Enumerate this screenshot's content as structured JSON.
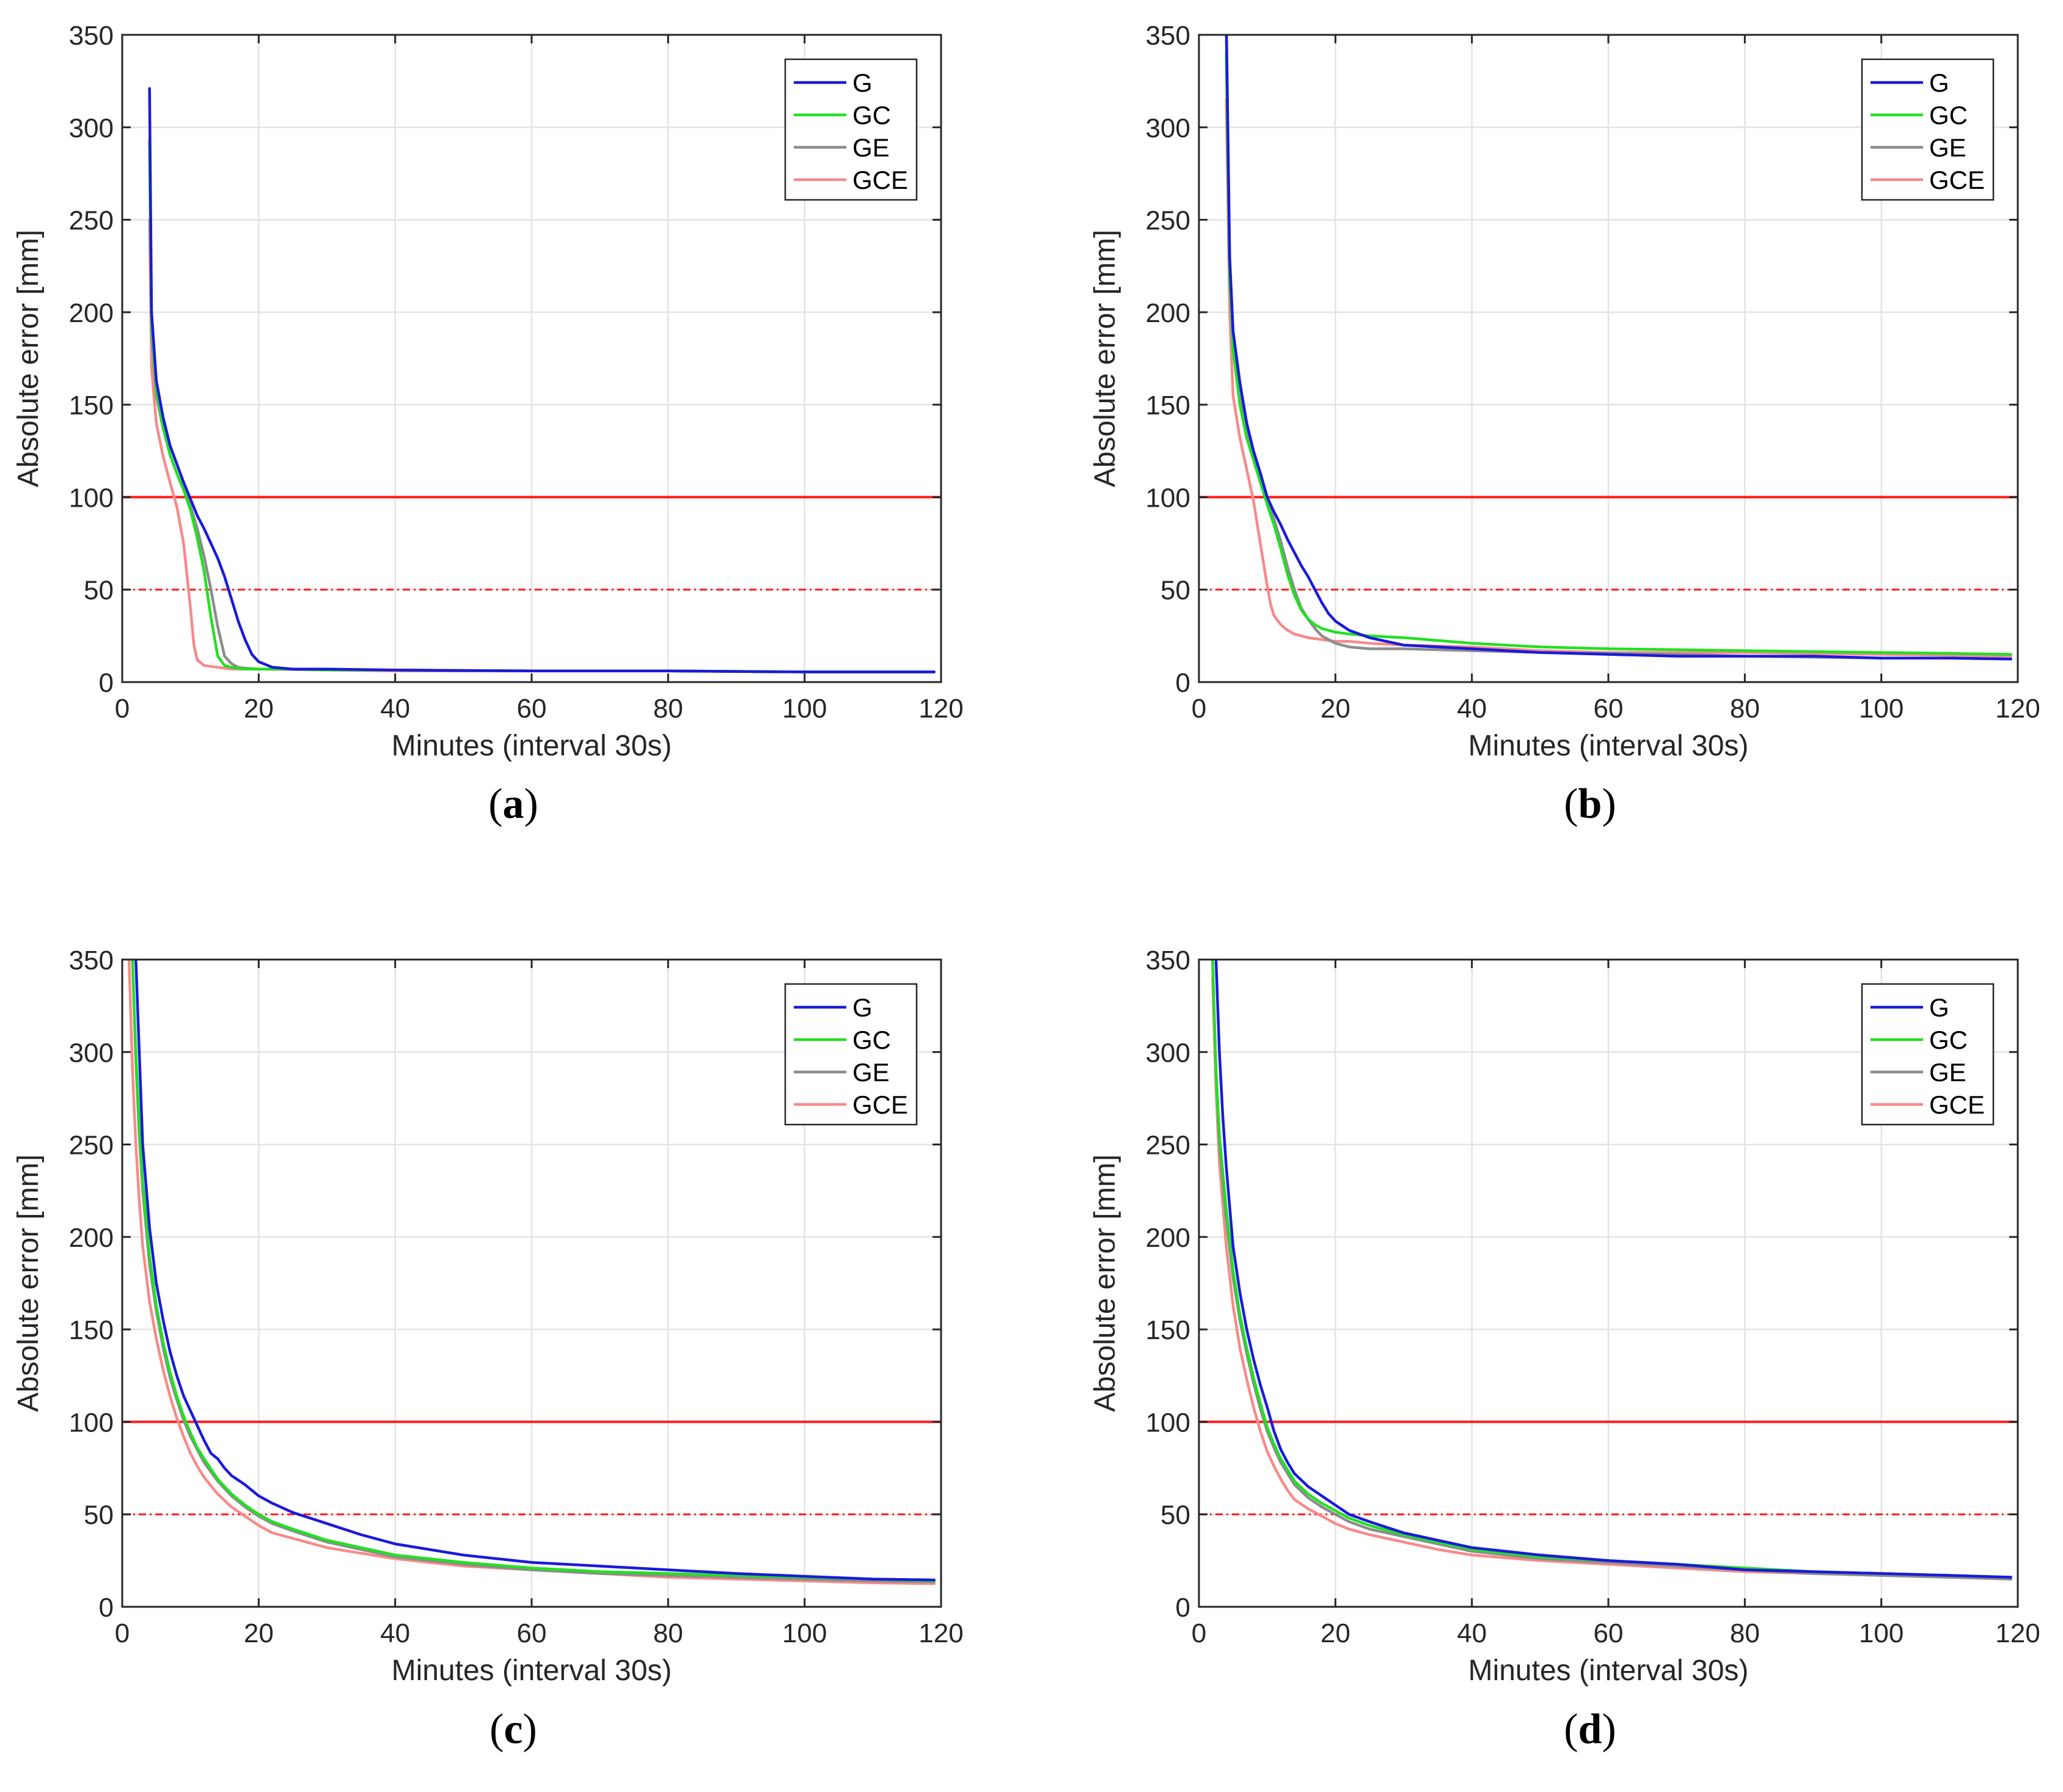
{
  "colors": {
    "G": "#1a1adb",
    "GC": "#22e022",
    "GE": "#8c8c8c",
    "GCE": "#f78a8a",
    "threshold": "#ff1a1a",
    "grid": "#e3e3e3",
    "axis": "#262626"
  },
  "chart_data": [
    {
      "type": "line",
      "panel_label": "a",
      "xlabel": "Minutes (interval 30s)",
      "ylabel": "Absolute error [mm]",
      "xlim": [
        0,
        120
      ],
      "ylim": [
        0,
        350
      ],
      "xticks": [
        0,
        20,
        40,
        60,
        80,
        100,
        120
      ],
      "yticks": [
        0,
        50,
        100,
        150,
        200,
        250,
        300,
        350
      ],
      "grid": true,
      "legend_position": "top-right",
      "legend": [
        "G",
        "GC",
        "GE",
        "GCE"
      ],
      "reference_lines": [
        {
          "y": 100,
          "style": "solid"
        },
        {
          "y": 50,
          "style": "dashed"
        }
      ],
      "series": [
        {
          "name": "G",
          "x": [
            4,
            4.3,
            5,
            6,
            7,
            8,
            9,
            10,
            11,
            12,
            13,
            14,
            15,
            16,
            17,
            18,
            19,
            20,
            22,
            25,
            30,
            40,
            60,
            80,
            100,
            119
          ],
          "y": [
            321,
            200,
            163,
            143,
            128,
            118,
            108,
            99,
            90,
            83,
            75,
            67,
            57,
            45,
            33,
            23,
            15,
            11,
            8,
            7,
            7,
            6.5,
            6,
            6,
            5.5,
            5.5
          ]
        },
        {
          "name": "GC",
          "x": [
            4,
            4.3,
            5,
            6,
            7,
            8,
            9,
            10,
            11,
            12,
            13,
            14,
            15,
            16,
            18,
            20,
            25,
            30,
            40,
            60,
            80,
            100,
            119
          ],
          "y": [
            293,
            195,
            158,
            138,
            123,
            113,
            104,
            93,
            78,
            60,
            35,
            14,
            9,
            8,
            7,
            7,
            7,
            6.5,
            6.5,
            6,
            6,
            5.5,
            5.5
          ]
        },
        {
          "name": "GE",
          "x": [
            4,
            4.3,
            5,
            6,
            7,
            8,
            9,
            10,
            11,
            12,
            13,
            14,
            15,
            16,
            17,
            18,
            20,
            25,
            30,
            40,
            60,
            80,
            100,
            119
          ],
          "y": [
            290,
            190,
            155,
            137,
            123,
            113,
            104,
            95,
            83,
            68,
            50,
            30,
            14,
            10,
            8,
            7.5,
            7,
            7,
            6.5,
            6.5,
            6,
            6,
            5.5,
            5.5
          ]
        },
        {
          "name": "GCE",
          "x": [
            4,
            4.3,
            5,
            6,
            7,
            8,
            9,
            10,
            10.5,
            11,
            12,
            14,
            16,
            20,
            30,
            40,
            60,
            80,
            100,
            119
          ],
          "y": [
            250,
            170,
            140,
            122,
            108,
            95,
            75,
            40,
            20,
            12,
            9,
            8,
            7,
            7,
            6.5,
            6,
            6,
            6,
            5.5,
            5.5
          ]
        }
      ]
    },
    {
      "type": "line",
      "panel_label": "b",
      "xlabel": "Minutes (interval 30s)",
      "ylabel": "Absolute error [mm]",
      "xlim": [
        0,
        120
      ],
      "ylim": [
        0,
        350
      ],
      "xticks": [
        0,
        20,
        40,
        60,
        80,
        100,
        120
      ],
      "yticks": [
        0,
        50,
        100,
        150,
        200,
        250,
        300,
        350
      ],
      "grid": true,
      "legend_position": "top-right",
      "legend": [
        "G",
        "GC",
        "GE",
        "GCE"
      ],
      "reference_lines": [
        {
          "y": 100,
          "style": "solid"
        },
        {
          "y": 50,
          "style": "dashed"
        }
      ],
      "series": [
        {
          "name": "G",
          "x": [
            4,
            4.5,
            5,
            6,
            7,
            8,
            9,
            10,
            11,
            12,
            13,
            14,
            15,
            16,
            17,
            18,
            19,
            20,
            22,
            25,
            30,
            40,
            50,
            60,
            70,
            80,
            90,
            100,
            110,
            119
          ],
          "y": [
            360,
            230,
            190,
            162,
            140,
            125,
            113,
            100,
            92,
            85,
            77,
            70,
            63,
            57,
            50,
            43,
            37,
            33,
            28,
            24,
            20,
            18,
            16,
            15,
            14,
            14,
            14,
            13,
            13,
            12.5
          ]
        },
        {
          "name": "GC",
          "x": [
            4,
            4.5,
            5,
            6,
            7,
            8,
            9,
            10,
            11,
            12,
            13,
            14,
            15,
            16,
            17,
            18,
            20,
            22,
            25,
            30,
            40,
            50,
            60,
            70,
            80,
            90,
            100,
            110,
            119
          ],
          "y": [
            340,
            220,
            180,
            150,
            132,
            120,
            108,
            96,
            85,
            72,
            58,
            47,
            39,
            34,
            31,
            29,
            27,
            26,
            25,
            24,
            21,
            19,
            18,
            17.5,
            17,
            16.5,
            16,
            15.5,
            15
          ]
        },
        {
          "name": "GE",
          "x": [
            4,
            4.5,
            5,
            6,
            7,
            8,
            9,
            10,
            11,
            12,
            13,
            14,
            15,
            16,
            17,
            18,
            20,
            22,
            25,
            30,
            40,
            50,
            60,
            70,
            80,
            90,
            100,
            110,
            119
          ],
          "y": [
            350,
            225,
            185,
            155,
            135,
            122,
            110,
            98,
            88,
            76,
            62,
            50,
            40,
            34,
            29,
            25,
            21,
            19,
            18,
            18,
            17,
            16,
            15.5,
            15,
            14,
            13.5,
            13,
            13,
            12.5
          ]
        },
        {
          "name": "GCE",
          "x": [
            4,
            4.5,
            5,
            6,
            7,
            8,
            9,
            10,
            10.5,
            11,
            12,
            13,
            14,
            16,
            18,
            20,
            22,
            25,
            30,
            40,
            50,
            60,
            70,
            80,
            90,
            100,
            110,
            119
          ],
          "y": [
            315,
            200,
            155,
            132,
            115,
            98,
            75,
            52,
            42,
            36,
            31,
            28,
            26,
            24,
            23,
            22,
            22,
            21,
            20,
            19,
            17,
            16,
            16,
            16,
            15.5,
            15,
            14.5,
            14
          ]
        }
      ]
    },
    {
      "type": "line",
      "panel_label": "c",
      "xlabel": "Minutes (interval 30s)",
      "ylabel": "Absolute error [mm]",
      "xlim": [
        0,
        120
      ],
      "ylim": [
        0,
        350
      ],
      "xticks": [
        0,
        20,
        40,
        60,
        80,
        100,
        120
      ],
      "yticks": [
        0,
        50,
        100,
        150,
        200,
        250,
        300,
        350
      ],
      "grid": true,
      "legend_position": "top-right",
      "legend": [
        "G",
        "GC",
        "GE",
        "GCE"
      ],
      "reference_lines": [
        {
          "y": 100,
          "style": "solid"
        },
        {
          "y": 50,
          "style": "dashed"
        }
      ],
      "series": [
        {
          "name": "G",
          "x": [
            2,
            2.5,
            3,
            4,
            5,
            6,
            7,
            8,
            9,
            10,
            11,
            12,
            13,
            14,
            15,
            16,
            18,
            20,
            22,
            25,
            30,
            35,
            40,
            50,
            60,
            70,
            80,
            90,
            100,
            110,
            119
          ],
          "y": [
            350,
            300,
            250,
            205,
            175,
            155,
            138,
            125,
            114,
            106,
            98,
            90,
            83,
            80,
            75,
            71,
            66,
            60,
            56,
            51,
            45,
            39,
            34,
            28,
            24,
            22,
            20,
            18,
            16.5,
            15,
            14.5
          ]
        },
        {
          "name": "GC",
          "x": [
            1.5,
            2,
            2.5,
            3,
            4,
            5,
            6,
            7,
            8,
            9,
            10,
            11,
            12,
            14,
            16,
            18,
            20,
            22,
            25,
            30,
            35,
            40,
            50,
            60,
            70,
            80,
            90,
            100,
            110,
            119
          ],
          "y": [
            350,
            300,
            260,
            230,
            190,
            163,
            143,
            127,
            114,
            103,
            94,
            86,
            80,
            69,
            61,
            55,
            50,
            46,
            42,
            36,
            32,
            28,
            24,
            21,
            19,
            18,
            17,
            16,
            15,
            14
          ]
        },
        {
          "name": "GE",
          "x": [
            1.5,
            2,
            2.5,
            3,
            4,
            5,
            6,
            7,
            8,
            9,
            10,
            11,
            12,
            14,
            16,
            18,
            20,
            22,
            25,
            30,
            35,
            40,
            50,
            60,
            70,
            80,
            90,
            100,
            110,
            119
          ],
          "y": [
            350,
            295,
            255,
            225,
            185,
            160,
            140,
            124,
            112,
            101,
            92,
            85,
            78,
            68,
            60,
            54,
            49,
            45,
            41,
            35,
            31,
            27,
            23,
            20,
            18,
            17,
            16,
            15,
            14,
            13.5
          ]
        },
        {
          "name": "GCE",
          "x": [
            1,
            1.5,
            2,
            2.5,
            3,
            4,
            5,
            6,
            7,
            8,
            9,
            10,
            11,
            12,
            14,
            16,
            18,
            20,
            22,
            25,
            30,
            35,
            40,
            50,
            60,
            70,
            80,
            90,
            100,
            110,
            119
          ],
          "y": [
            350,
            290,
            250,
            220,
            195,
            165,
            145,
            128,
            114,
            102,
            92,
            83,
            76,
            70,
            61,
            54,
            49,
            44,
            40,
            37,
            32,
            29,
            26,
            22,
            20,
            18,
            16,
            15,
            14,
            13,
            12.5
          ]
        }
      ]
    },
    {
      "type": "line",
      "panel_label": "d",
      "xlabel": "Minutes (interval 30s)",
      "ylabel": "Absolute error [mm]",
      "xlim": [
        0,
        120
      ],
      "ylim": [
        0,
        350
      ],
      "xticks": [
        0,
        20,
        40,
        60,
        80,
        100,
        120
      ],
      "yticks": [
        0,
        50,
        100,
        150,
        200,
        250,
        300,
        350
      ],
      "grid": true,
      "legend_position": "top-right",
      "legend": [
        "G",
        "GC",
        "GE",
        "GCE"
      ],
      "reference_lines": [
        {
          "y": 100,
          "style": "solid"
        },
        {
          "y": 50,
          "style": "dashed"
        }
      ],
      "series": [
        {
          "name": "G",
          "x": [
            2.5,
            3,
            3.5,
            4,
            5,
            6,
            7,
            8,
            9,
            10,
            11,
            12,
            13,
            14,
            16,
            18,
            20,
            22,
            25,
            30,
            35,
            40,
            50,
            60,
            70,
            80,
            90,
            100,
            110,
            119
          ],
          "y": [
            350,
            300,
            265,
            238,
            195,
            170,
            150,
            134,
            120,
            108,
            95,
            85,
            78,
            72,
            65,
            60,
            55,
            50,
            46,
            40,
            36,
            32,
            28,
            25,
            23,
            20,
            19,
            18,
            17,
            16
          ]
        },
        {
          "name": "GC",
          "x": [
            2,
            2.5,
            3,
            4,
            5,
            6,
            7,
            8,
            9,
            10,
            11,
            12,
            13,
            14,
            16,
            18,
            20,
            22,
            25,
            30,
            35,
            40,
            50,
            60,
            70,
            80,
            90,
            100,
            110,
            119
          ],
          "y": [
            350,
            290,
            255,
            215,
            182,
            158,
            140,
            124,
            110,
            97,
            88,
            80,
            74,
            68,
            61,
            56,
            52,
            48,
            44,
            39,
            35,
            31,
            27,
            25,
            23,
            21,
            19,
            18,
            17,
            16
          ]
        },
        {
          "name": "GE",
          "x": [
            2,
            2.5,
            3,
            4,
            5,
            6,
            7,
            8,
            9,
            10,
            11,
            12,
            13,
            14,
            16,
            18,
            20,
            22,
            25,
            30,
            35,
            40,
            50,
            60,
            70,
            80,
            90,
            100,
            110,
            119
          ],
          "y": [
            350,
            290,
            250,
            210,
            178,
            155,
            137,
            121,
            107,
            95,
            86,
            78,
            72,
            66,
            59,
            54,
            50,
            46,
            42,
            38,
            34,
            30,
            26,
            24,
            22,
            20,
            18,
            17,
            16,
            15
          ]
        },
        {
          "name": "GCE",
          "x": [
            2,
            2.5,
            3,
            4,
            5,
            6,
            7,
            8,
            9,
            10,
            11,
            12,
            13,
            14,
            16,
            18,
            20,
            22,
            25,
            30,
            35,
            40,
            50,
            60,
            70,
            80,
            90,
            100,
            110,
            119
          ],
          "y": [
            340,
            280,
            240,
            195,
            163,
            140,
            123,
            108,
            95,
            84,
            76,
            69,
            63,
            58,
            53,
            49,
            45,
            42,
            39,
            35,
            31,
            28,
            25,
            23,
            21,
            19,
            18,
            17,
            16,
            15
          ]
        }
      ]
    }
  ]
}
